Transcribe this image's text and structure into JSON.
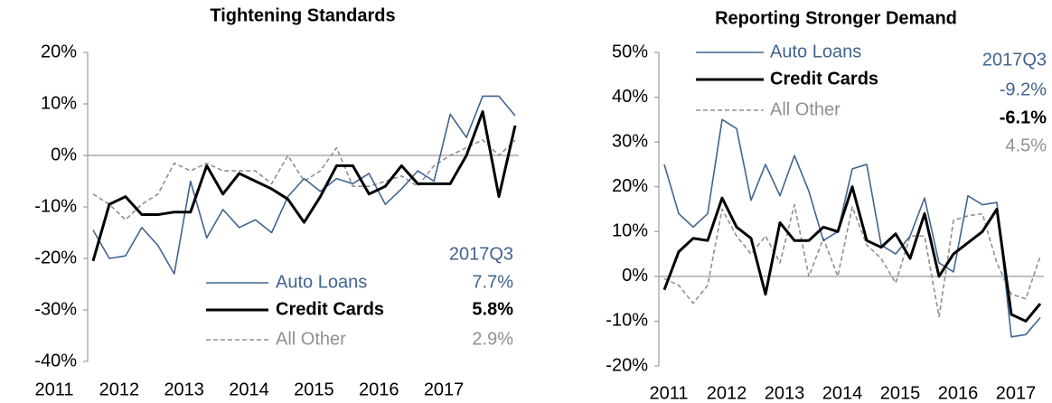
{
  "chart_data": [
    {
      "type": "line",
      "title": "Tightening Standards",
      "categories": [
        "2011",
        null,
        null,
        null,
        "2012",
        null,
        null,
        null,
        "2013",
        null,
        null,
        null,
        "2014",
        null,
        null,
        null,
        "2015",
        null,
        null,
        null,
        "2016",
        null,
        null,
        null,
        "2017",
        null,
        null
      ],
      "ylim": [
        -40,
        20
      ],
      "yticks": [
        {
          "value": -40,
          "label": "-40%"
        },
        {
          "value": -30,
          "label": "-30%"
        },
        {
          "value": -20,
          "label": "-20%"
        },
        {
          "value": -10,
          "label": "-10%"
        },
        {
          "value": 0,
          "label": "0%"
        },
        {
          "value": 10,
          "label": "10%"
        },
        {
          "value": 20,
          "label": "20%"
        }
      ],
      "legend_title": "2017Q3",
      "series": [
        {
          "name": "Auto Loans",
          "color": "#41648f",
          "dash": false,
          "width": 1.6,
          "values": [
            -14.5,
            -20,
            -19.5,
            -14,
            -17.5,
            -23,
            -5,
            -16,
            -10.5,
            -14,
            -12.5,
            -15,
            -8,
            -4.5,
            -7,
            -4.5,
            -5.5,
            -3.5,
            -9.5,
            -6.5,
            -3,
            -5,
            8,
            3.5,
            11.5,
            11.5,
            7.7
          ],
          "value_labels": [
            null,
            null,
            null,
            null,
            null,
            null,
            null,
            null,
            null,
            null,
            null,
            null,
            null,
            null,
            null,
            null,
            null,
            null,
            null,
            null,
            null,
            null,
            null,
            null,
            null,
            null,
            "7.7%"
          ]
        },
        {
          "name": "Credit Cards",
          "color": "#000000",
          "dash": false,
          "width": 3,
          "values": [
            -20.5,
            -9.5,
            -8,
            -11.5,
            -11.5,
            -11,
            -11,
            -2,
            -7.5,
            -3.5,
            -5,
            -6.5,
            -8.5,
            -13,
            -8,
            -2,
            -2,
            -7.5,
            -6,
            -2,
            -5.5,
            -5.5,
            -5.5,
            0,
            8.5,
            -8,
            5.8
          ],
          "value_labels": [
            null,
            null,
            null,
            null,
            null,
            null,
            null,
            null,
            null,
            null,
            null,
            null,
            null,
            null,
            null,
            null,
            null,
            null,
            null,
            null,
            null,
            null,
            null,
            null,
            null,
            null,
            "5.8%"
          ]
        },
        {
          "name": "All Other",
          "color": "#909090",
          "dash": true,
          "width": 1.6,
          "values": [
            -7.5,
            -9.5,
            -12.5,
            -9.5,
            -7.5,
            -1.5,
            -3,
            -1.5,
            -3,
            -3,
            -3,
            -5.5,
            0,
            -5,
            -3,
            1.5,
            -6,
            -6,
            -5,
            -4,
            -6,
            -2,
            0,
            1.5,
            3,
            0,
            2.9
          ],
          "value_labels": [
            null,
            null,
            null,
            null,
            null,
            null,
            null,
            null,
            null,
            null,
            null,
            null,
            null,
            null,
            null,
            null,
            null,
            null,
            null,
            null,
            null,
            null,
            null,
            null,
            null,
            null,
            "2.9%"
          ]
        }
      ]
    },
    {
      "type": "line",
      "title": "Reporting Stronger Demand",
      "categories": [
        "2011",
        null,
        null,
        null,
        "2012",
        null,
        null,
        null,
        "2013",
        null,
        null,
        null,
        "2014",
        null,
        null,
        null,
        "2015",
        null,
        null,
        null,
        "2016",
        null,
        null,
        null,
        "2017",
        null,
        null
      ],
      "ylim": [
        -20,
        50
      ],
      "yticks": [
        {
          "value": -20,
          "label": "-20%"
        },
        {
          "value": -10,
          "label": "-10%"
        },
        {
          "value": 0,
          "label": "0%"
        },
        {
          "value": 10,
          "label": "10%"
        },
        {
          "value": 20,
          "label": "20%"
        },
        {
          "value": 30,
          "label": "30%"
        },
        {
          "value": 40,
          "label": "40%"
        },
        {
          "value": 50,
          "label": "50%"
        }
      ],
      "legend_title": "2017Q3",
      "series": [
        {
          "name": "Auto Loans",
          "color": "#41648f",
          "dash": false,
          "width": 1.6,
          "values": [
            25,
            14,
            11,
            14,
            35,
            33,
            17,
            25,
            18,
            27,
            19,
            8,
            10,
            24,
            25,
            7,
            5,
            9,
            17.5,
            3,
            1,
            18,
            16,
            16.5,
            -13.5,
            -13,
            -9.2
          ],
          "value_labels": [
            null,
            null,
            null,
            null,
            null,
            null,
            null,
            null,
            null,
            null,
            null,
            null,
            null,
            null,
            null,
            null,
            null,
            null,
            null,
            null,
            null,
            null,
            null,
            null,
            null,
            null,
            "-9.2%"
          ]
        },
        {
          "name": "Credit Cards",
          "color": "#000000",
          "dash": false,
          "width": 3,
          "values": [
            -3,
            5.5,
            8.5,
            8,
            17.5,
            11,
            8.5,
            -4,
            12,
            8,
            8,
            11,
            10,
            20,
            8,
            6.5,
            9.5,
            4,
            14,
            0,
            5,
            7.5,
            10,
            15,
            -8.5,
            -10,
            -6.1
          ],
          "value_labels": [
            null,
            null,
            null,
            null,
            null,
            null,
            null,
            null,
            null,
            null,
            null,
            null,
            null,
            null,
            null,
            null,
            null,
            null,
            null,
            null,
            null,
            null,
            null,
            null,
            null,
            null,
            "-6.1%"
          ]
        },
        {
          "name": "All Other",
          "color": "#909090",
          "dash": true,
          "width": 1.6,
          "values": [
            -0.5,
            -2,
            -6,
            -2,
            15,
            9,
            5,
            9,
            3,
            16,
            0,
            8.5,
            0,
            15.5,
            7,
            4,
            -1.5,
            9,
            9,
            -9,
            12.5,
            13.5,
            14,
            3,
            -4,
            -5,
            4.5
          ],
          "value_labels": [
            null,
            null,
            null,
            null,
            null,
            null,
            null,
            null,
            null,
            null,
            null,
            null,
            null,
            null,
            null,
            null,
            null,
            null,
            null,
            null,
            null,
            null,
            null,
            null,
            null,
            null,
            "4.5%"
          ]
        }
      ]
    }
  ]
}
